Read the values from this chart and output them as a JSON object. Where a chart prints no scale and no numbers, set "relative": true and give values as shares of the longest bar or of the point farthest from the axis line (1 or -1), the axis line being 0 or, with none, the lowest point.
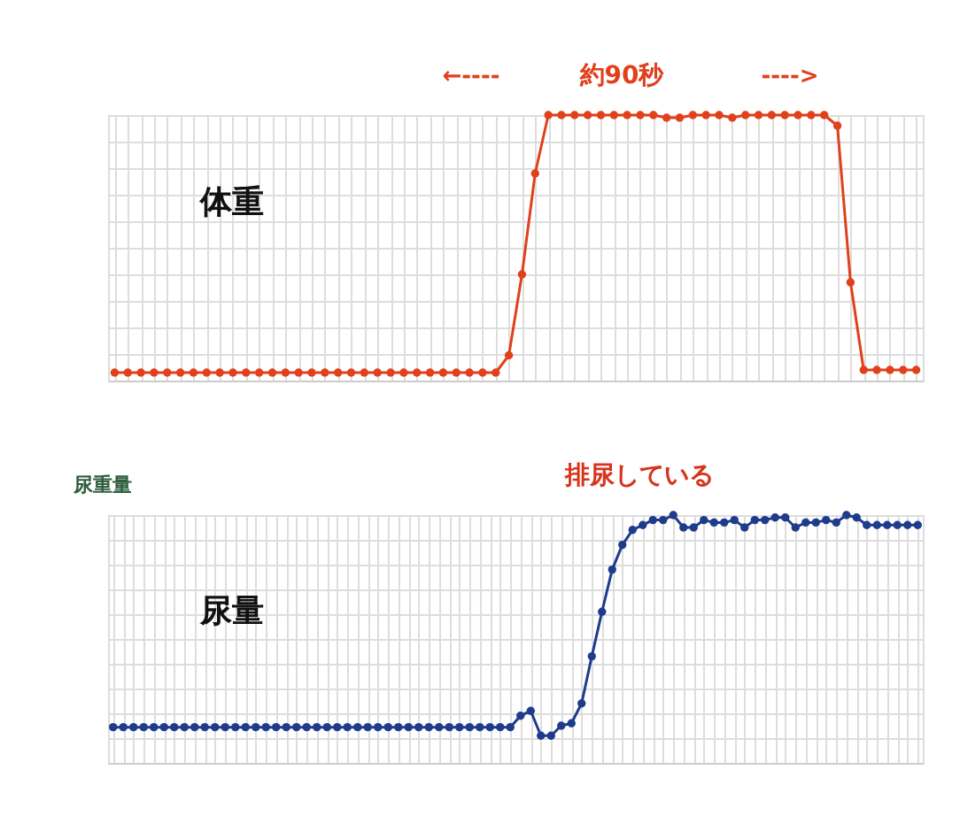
{
  "chart_data": [
    {
      "type": "line",
      "relative": true,
      "marker": "circle",
      "line_style": "solid",
      "grid": true,
      "tick_labels": false,
      "annotations": [
        "←----",
        "約90秒",
        "---->",
        "体重"
      ],
      "categories": [
        null,
        null,
        null,
        null,
        null,
        null,
        null,
        null,
        null,
        null,
        null,
        null,
        null,
        null,
        null,
        null,
        null,
        null,
        null,
        null,
        null,
        null,
        null,
        null,
        null,
        null,
        null,
        null,
        null,
        null,
        null,
        null,
        null,
        null,
        null,
        null,
        null,
        null,
        null,
        null,
        null,
        null,
        null,
        null,
        null,
        null,
        null,
        null,
        null,
        null,
        null,
        null,
        null,
        null,
        null,
        null,
        null,
        null,
        null,
        null,
        null,
        null
      ],
      "series": [
        {
          "color": "#e0401c",
          "values": [
            0.03,
            0.03,
            0.03,
            0.03,
            0.03,
            0.03,
            0.03,
            0.03,
            0.03,
            0.03,
            0.03,
            0.03,
            0.03,
            0.03,
            0.03,
            0.03,
            0.03,
            0.03,
            0.03,
            0.03,
            0.03,
            0.03,
            0.03,
            0.03,
            0.03,
            0.03,
            0.03,
            0.03,
            0.03,
            0.03,
            0.095,
            0.4,
            0.78,
            1,
            1,
            1,
            1,
            1,
            1,
            1,
            1,
            1,
            0.99,
            0.99,
            1,
            1,
            1,
            0.99,
            1,
            1,
            1,
            1,
            1,
            1,
            1,
            0.96,
            0.37,
            0.04,
            0.04,
            0.04,
            0.04,
            0.04
          ]
        }
      ]
    },
    {
      "type": "line",
      "relative": true,
      "marker": "circle",
      "line_style": "solid",
      "grid": true,
      "tick_labels": false,
      "ylabel": "尿重量",
      "annotations": [
        "排尿している",
        "尿量"
      ],
      "categories": [
        null,
        null,
        null,
        null,
        null,
        null,
        null,
        null,
        null,
        null,
        null,
        null,
        null,
        null,
        null,
        null,
        null,
        null,
        null,
        null,
        null,
        null,
        null,
        null,
        null,
        null,
        null,
        null,
        null,
        null,
        null,
        null,
        null,
        null,
        null,
        null,
        null,
        null,
        null,
        null,
        null,
        null,
        null,
        null,
        null,
        null,
        null,
        null,
        null,
        null,
        null,
        null,
        null,
        null,
        null,
        null,
        null,
        null,
        null,
        null,
        null,
        null,
        null,
        null,
        null,
        null,
        null,
        null,
        null,
        null,
        null,
        null,
        null,
        null,
        null,
        null,
        null,
        null,
        null,
        null
      ],
      "series": [
        {
          "color": "#1f3c8c",
          "values": [
            0.144,
            0.144,
            0.144,
            0.144,
            0.144,
            0.144,
            0.144,
            0.144,
            0.144,
            0.144,
            0.144,
            0.144,
            0.144,
            0.144,
            0.144,
            0.144,
            0.144,
            0.144,
            0.144,
            0.144,
            0.144,
            0.144,
            0.144,
            0.144,
            0.144,
            0.144,
            0.144,
            0.144,
            0.144,
            0.144,
            0.144,
            0.144,
            0.144,
            0.144,
            0.144,
            0.144,
            0.144,
            0.144,
            0.144,
            0.144,
            0.19,
            0.21,
            0.11,
            0.11,
            0.15,
            0.16,
            0.24,
            0.43,
            0.61,
            0.78,
            0.88,
            0.94,
            0.96,
            0.98,
            0.98,
            1,
            0.95,
            0.95,
            0.98,
            0.97,
            0.97,
            0.98,
            0.95,
            0.98,
            0.98,
            0.99,
            0.99,
            0.95,
            0.97,
            0.97,
            0.98,
            0.97,
            1,
            0.99,
            0.96,
            0.96,
            0.96,
            0.96,
            0.96,
            0.96
          ]
        }
      ]
    }
  ]
}
